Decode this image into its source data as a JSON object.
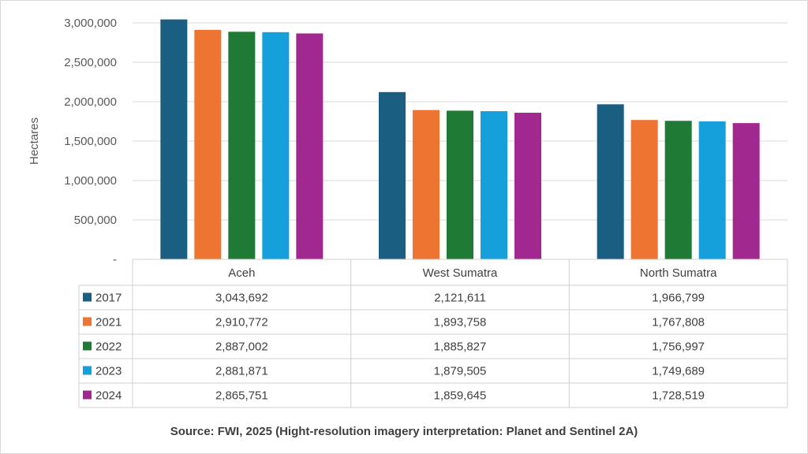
{
  "chart_data": {
    "type": "bar",
    "ylabel": "Hectares",
    "ylim": [
      0,
      3000000
    ],
    "yticks": [
      0,
      500000,
      1000000,
      1500000,
      2000000,
      2500000,
      3000000
    ],
    "ytick_labels": [
      "-",
      "500,000",
      "1,000,000",
      "1,500,000",
      "2,000,000",
      "2,500,000",
      "3,000,000"
    ],
    "grid": true,
    "categories": [
      "Aceh",
      "West Sumatra",
      "North Sumatra"
    ],
    "series": [
      {
        "name": "2017",
        "color": "#1a5e82",
        "values": [
          3043692,
          2121611,
          1966799
        ],
        "labels": [
          "3,043,692",
          "2,121,611",
          "1,966,799"
        ]
      },
      {
        "name": "2021",
        "color": "#ed7431",
        "values": [
          2910772,
          1893758,
          1767808
        ],
        "labels": [
          "2,910,772",
          "1,893,758",
          "1,767,808"
        ]
      },
      {
        "name": "2022",
        "color": "#1e7a34",
        "values": [
          2887002,
          1885827,
          1756997
        ],
        "labels": [
          "2,887,002",
          "1,885,827",
          "1,756,997"
        ]
      },
      {
        "name": "2023",
        "color": "#15a0dc",
        "values": [
          2881871,
          1879505,
          1749689
        ],
        "labels": [
          "2,881,871",
          "1,879,505",
          "1,749,689"
        ]
      },
      {
        "name": "2024",
        "color": "#a0288f",
        "values": [
          2865751,
          1859645,
          1728519
        ],
        "labels": [
          "2,865,751",
          "1,859,645",
          "1,728,519"
        ]
      }
    ],
    "legend": "data-table"
  },
  "source": "Source: FWI, 2025 (Hight-resolution imagery interpretation: Planet and Sentinel 2A)"
}
